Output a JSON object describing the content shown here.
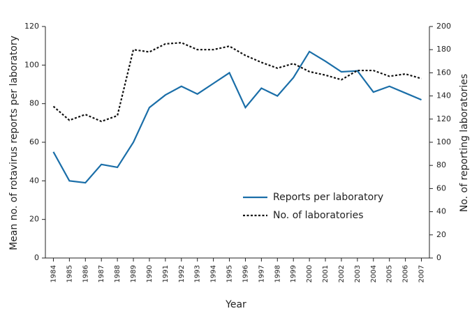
{
  "chart_data": {
    "type": "line",
    "x_label": "Year",
    "y_label": "Mean no. of rotavirus reports per laboratory",
    "y2_label": "No. of reporting laboratories",
    "categories": [
      "1984",
      "1985",
      "1986",
      "1987",
      "1988",
      "1989",
      "1990",
      "1991",
      "1992",
      "1993",
      "1994",
      "1995",
      "1996",
      "1997",
      "1998",
      "1999",
      "2000",
      "2001",
      "2002",
      "2003",
      "2004",
      "2005",
      "2006",
      "2007"
    ],
    "series": [
      {
        "name": "Reports per laboratory",
        "color": "#1a6ea8",
        "dash": "solid",
        "values": [
          55,
          40,
          39,
          48.5,
          47,
          60,
          78,
          84.5,
          89,
          85,
          90.5,
          96,
          78,
          88,
          84,
          93.5,
          107,
          102,
          96.5,
          97,
          86,
          89,
          85.5,
          82
        ]
      },
      {
        "name": "No. of laboratories",
        "color": "#111111",
        "dash": "dotted",
        "axis": "y2",
        "values": [
          131,
          119,
          124,
          118,
          123,
          180,
          178,
          185,
          186,
          180,
          180,
          183,
          175,
          169,
          164,
          168,
          161,
          158,
          154,
          162,
          162,
          157,
          159,
          155
        ]
      }
    ],
    "ylim": [
      0,
      120
    ],
    "yticks": [
      0,
      20,
      40,
      60,
      80,
      100,
      120
    ],
    "y2lim": [
      0,
      200
    ],
    "y2ticks": [
      0,
      20,
      40,
      60,
      80,
      100,
      120,
      140,
      160,
      180,
      200
    ],
    "grid": false
  }
}
